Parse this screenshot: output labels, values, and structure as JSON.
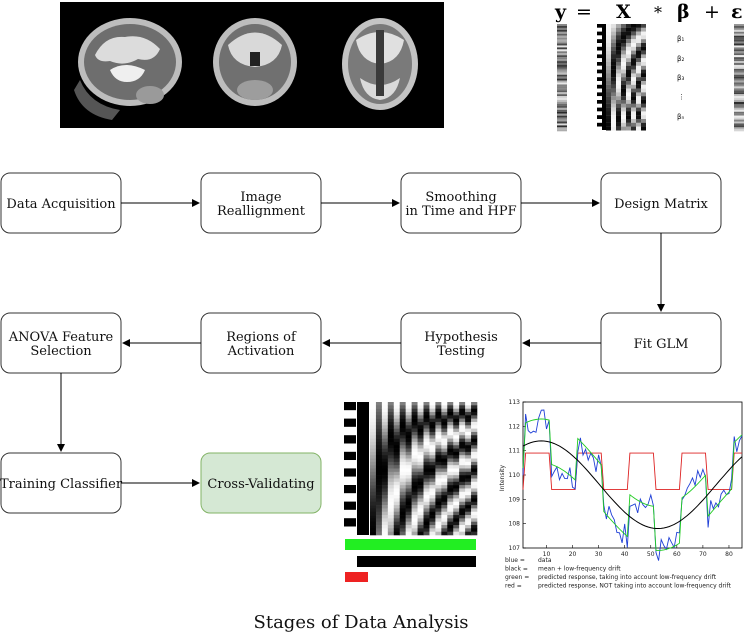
{
  "title": "Stages of Data Analysis",
  "colors": {
    "box_border": "#333333",
    "box_fill": "#ffffff",
    "highlight_fill": "#d5e8d4",
    "highlight_border": "#82b366",
    "arrow": "#000000",
    "data_blue": "#1f3fd6",
    "model_black": "#000000",
    "pred_green": "#22cc22",
    "pred_red": "#dd2222"
  },
  "boxes": [
    {
      "id": "data-acquisition",
      "lines": [
        "Data Acquisition"
      ]
    },
    {
      "id": "image-reallignment",
      "lines": [
        "Image",
        "Reallignment"
      ]
    },
    {
      "id": "smoothing",
      "lines": [
        "Smoothing",
        "in Time and HPF"
      ]
    },
    {
      "id": "design-matrix",
      "lines": [
        "Design Matrix"
      ]
    },
    {
      "id": "fit-glm",
      "lines": [
        "Fit GLM"
      ]
    },
    {
      "id": "hypothesis-testing",
      "lines": [
        "Hypothesis",
        "Testing"
      ]
    },
    {
      "id": "regions-of-activation",
      "lines": [
        "Regions of",
        "Activation"
      ]
    },
    {
      "id": "anova-feature-selection",
      "lines": [
        "ANOVA Feature",
        "Selection"
      ]
    },
    {
      "id": "training-classifier",
      "lines": [
        "Training Classifier"
      ]
    },
    {
      "id": "cross-validating",
      "lines": [
        "Cross-Validating"
      ],
      "highlight": true
    }
  ],
  "equation": {
    "y": "y",
    "eq": "=",
    "X": "X",
    "times": "*",
    "beta": "β",
    "plus": "+",
    "eps": "ε",
    "betas": [
      "β₁",
      "β₂",
      "β₃",
      "⋮",
      "βₙ"
    ]
  },
  "plot": {
    "yticks": [
      "113",
      "112",
      "111",
      "110",
      "109",
      "108",
      "107"
    ],
    "xticks": [
      "10",
      "20",
      "30",
      "40",
      "50",
      "60",
      "70",
      "80"
    ],
    "ylabel": "Intensity",
    "legend": [
      {
        "key": "blue =",
        "text": "data",
        "color": "#1f3fd6"
      },
      {
        "key": "black =",
        "text": "mean + low-frequency drift",
        "color": "#000000"
      },
      {
        "key": "green =",
        "text": "predicted response, taking into account low-frequency drift",
        "color": "#22cc22"
      },
      {
        "key": "red =",
        "text": "predicted response, NOT taking into account low-frequency drift",
        "color": "#dd2222"
      }
    ]
  }
}
